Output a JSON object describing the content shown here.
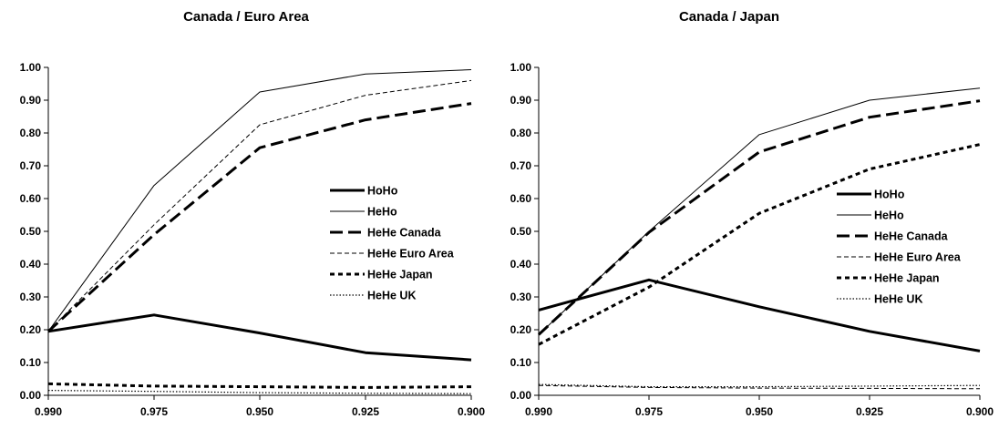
{
  "chart_data": [
    {
      "type": "line",
      "title": "Canada / Euro Area",
      "x": [
        "0.990",
        "0.975",
        "0.950",
        "0.925",
        "0.900"
      ],
      "xlabel": "",
      "ylabel": "",
      "ylim": [
        0,
        1
      ],
      "yticks": [
        "0.00",
        "0.10",
        "0.20",
        "0.30",
        "0.40",
        "0.50",
        "0.60",
        "0.70",
        "0.80",
        "0.90",
        "1.00"
      ],
      "grid": false,
      "legend_position": "right",
      "series": [
        {
          "name": "HoHo",
          "style": "thick-solid",
          "values": [
            0.195,
            0.245,
            0.19,
            0.13,
            0.108
          ]
        },
        {
          "name": "HeHo",
          "style": "thin-solid",
          "values": [
            0.195,
            0.64,
            0.925,
            0.98,
            0.993
          ]
        },
        {
          "name": "HeHe Canada",
          "style": "thick-long-dash",
          "values": [
            0.195,
            0.49,
            0.755,
            0.84,
            0.89
          ]
        },
        {
          "name": "HeHe Euro Area",
          "style": "thin-dash",
          "values": [
            0.195,
            0.52,
            0.825,
            0.915,
            0.96
          ]
        },
        {
          "name": "HeHe Japan",
          "style": "thick-short-dash",
          "values": [
            0.035,
            0.028,
            0.026,
            0.024,
            0.026
          ]
        },
        {
          "name": "HeHe UK",
          "style": "thin-dot",
          "values": [
            0.015,
            0.012,
            0.008,
            0.006,
            0.005
          ]
        }
      ]
    },
    {
      "type": "line",
      "title": "Canada / Japan",
      "x": [
        "0.990",
        "0.975",
        "0.950",
        "0.925",
        "0.900"
      ],
      "xlabel": "",
      "ylabel": "",
      "ylim": [
        0,
        1
      ],
      "yticks": [
        "0.00",
        "0.10",
        "0.20",
        "0.30",
        "0.40",
        "0.50",
        "0.60",
        "0.70",
        "0.80",
        "0.90",
        "1.00"
      ],
      "grid": false,
      "legend_position": "right",
      "series": [
        {
          "name": "HoHo",
          "style": "thick-solid",
          "values": [
            0.26,
            0.352,
            0.27,
            0.195,
            0.135
          ]
        },
        {
          "name": "HeHo",
          "style": "thin-solid",
          "values": [
            0.185,
            0.5,
            0.795,
            0.9,
            0.937
          ]
        },
        {
          "name": "HeHe Canada",
          "style": "thick-long-dash",
          "values": [
            0.185,
            0.497,
            0.742,
            0.848,
            0.898
          ]
        },
        {
          "name": "HeHe Euro Area",
          "style": "thin-dash",
          "values": [
            0.03,
            0.024,
            0.022,
            0.021,
            0.02
          ]
        },
        {
          "name": "HeHe Japan",
          "style": "thick-short-dash",
          "values": [
            0.155,
            0.33,
            0.555,
            0.69,
            0.765
          ]
        },
        {
          "name": "HeHe UK",
          "style": "thin-dot",
          "values": [
            0.033,
            0.026,
            0.026,
            0.028,
            0.03
          ]
        }
      ]
    }
  ]
}
